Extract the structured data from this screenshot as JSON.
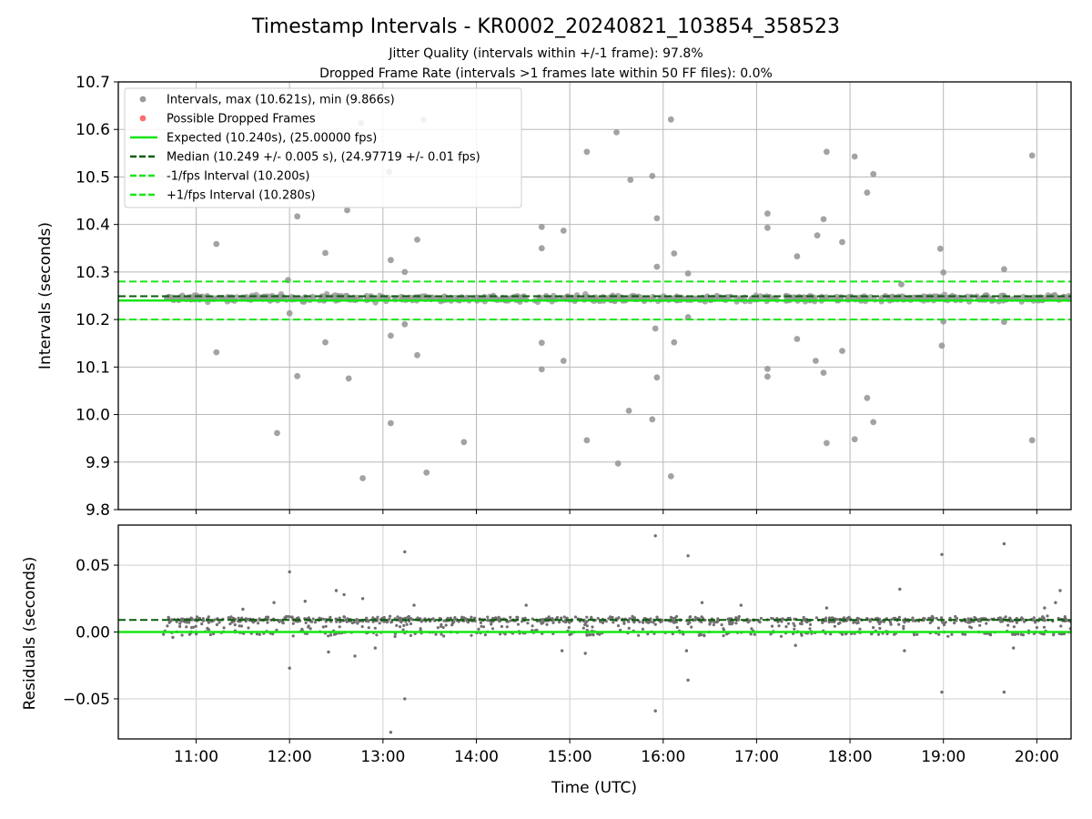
{
  "chart_data": [
    {
      "type": "scatter",
      "title": "Timestamp Intervals - KR0002_20240821_103854_358523",
      "subtitle_1": "Jitter Quality (intervals within +/-1 frame): 97.8%",
      "subtitle_2": "Dropped Frame Rate (intervals >1 frames late within 50 FF files): 0.0%",
      "xlabel": "",
      "ylabel": "Intervals (seconds)",
      "xlim": [
        "10:10",
        "20:22"
      ],
      "ylim": [
        9.8,
        10.7
      ],
      "y_ticks": [
        9.8,
        9.9,
        10.0,
        10.1,
        10.2,
        10.3,
        10.4,
        10.5,
        10.6,
        10.7
      ],
      "y_tick_labels": [
        "9.8",
        "9.9",
        "10.0",
        "10.1",
        "10.2",
        "10.3",
        "10.4",
        "10.5",
        "10.6",
        "10.7"
      ],
      "x_ticks": [
        "11:00",
        "12:00",
        "13:00",
        "14:00",
        "15:00",
        "16:00",
        "17:00",
        "18:00",
        "19:00",
        "20:00"
      ],
      "grid": true,
      "legend_position": "top-left",
      "legend": [
        "Intervals, max (10.621s), min (9.866s)",
        "Possible Dropped Frames",
        "Expected (10.240s), (25.00000 fps)",
        "Median (10.249 +/- 0.005 s), (24.97719 +/- 0.01 fps)",
        "-1/fps Interval (10.200s)",
        "+1/fps Interval (10.280s)"
      ],
      "reference_lines": [
        {
          "name": "Expected",
          "y": 10.24,
          "style": "solid",
          "color": "#17e617"
        },
        {
          "name": "Median",
          "y": 10.249,
          "style": "dashed",
          "color": "#0a5c0a"
        },
        {
          "name": "-1/fps Interval",
          "y": 10.2,
          "style": "dashed",
          "color": "#17e617"
        },
        {
          "name": "+1/fps Interval",
          "y": 10.28,
          "style": "dashed",
          "color": "#17e617"
        }
      ],
      "data_range_x": [
        "10:39",
        "20:22"
      ],
      "series": [
        {
          "name": "Intervals",
          "color": "#999999",
          "points": [
            [
              "11:13",
              10.359
            ],
            [
              "11:13",
              10.131
            ],
            [
              "11:59",
              10.283
            ],
            [
              "12:00",
              10.213
            ],
            [
              "12:05",
              10.417
            ],
            [
              "12:05",
              10.081
            ],
            [
              "11:52",
              9.961
            ],
            [
              "12:23",
              10.34
            ],
            [
              "12:23",
              10.152
            ],
            [
              "12:37",
              10.43
            ],
            [
              "12:38",
              10.076
            ],
            [
              "12:46",
              10.613
            ],
            [
              "12:47",
              9.866
            ],
            [
              "13:04",
              10.511
            ],
            [
              "13:05",
              10.325
            ],
            [
              "13:05",
              10.166
            ],
            [
              "13:05",
              9.982
            ],
            [
              "13:14",
              10.3
            ],
            [
              "13:14",
              10.19
            ],
            [
              "13:22",
              10.368
            ],
            [
              "13:22",
              10.125
            ],
            [
              "13:26",
              10.621
            ],
            [
              "13:28",
              9.878
            ],
            [
              "13:52",
              9.942
            ],
            [
              "14:42",
              10.395
            ],
            [
              "14:42",
              10.35
            ],
            [
              "14:42",
              10.151
            ],
            [
              "14:42",
              10.095
            ],
            [
              "14:56",
              10.387
            ],
            [
              "14:56",
              10.113
            ],
            [
              "15:11",
              10.553
            ],
            [
              "15:11",
              9.946
            ],
            [
              "15:30",
              10.594
            ],
            [
              "15:31",
              9.897
            ],
            [
              "15:39",
              10.494
            ],
            [
              "15:38",
              10.008
            ],
            [
              "15:53",
              10.502
            ],
            [
              "15:53",
              9.99
            ],
            [
              "15:56",
              10.413
            ],
            [
              "15:56",
              10.311
            ],
            [
              "15:55",
              10.181
            ],
            [
              "15:56",
              10.078
            ],
            [
              "16:05",
              10.621
            ],
            [
              "16:05",
              9.87
            ],
            [
              "16:07",
              10.339
            ],
            [
              "16:07",
              10.152
            ],
            [
              "16:16",
              10.297
            ],
            [
              "16:16",
              10.205
            ],
            [
              "17:07",
              10.423
            ],
            [
              "17:07",
              10.393
            ],
            [
              "17:07",
              10.096
            ],
            [
              "17:07",
              10.08
            ],
            [
              "17:26",
              10.333
            ],
            [
              "17:26",
              10.159
            ],
            [
              "17:39",
              10.377
            ],
            [
              "17:38",
              10.113
            ],
            [
              "17:43",
              10.411
            ],
            [
              "17:43",
              10.088
            ],
            [
              "17:45",
              10.553
            ],
            [
              "17:45",
              9.94
            ],
            [
              "17:55",
              10.363
            ],
            [
              "17:55",
              10.134
            ],
            [
              "18:03",
              10.543
            ],
            [
              "18:03",
              9.948
            ],
            [
              "18:11",
              10.467
            ],
            [
              "18:11",
              10.035
            ],
            [
              "18:15",
              10.506
            ],
            [
              "18:15",
              9.984
            ],
            [
              "18:33",
              10.274
            ],
            [
              "18:58",
              10.349
            ],
            [
              "19:00",
              10.299
            ],
            [
              "19:00",
              10.196
            ],
            [
              "18:59",
              10.145
            ],
            [
              "19:39",
              10.306
            ],
            [
              "19:39",
              10.195
            ],
            [
              "19:57",
              10.545
            ],
            [
              "19:57",
              9.946
            ]
          ]
        }
      ]
    },
    {
      "type": "scatter",
      "title": "",
      "xlabel": "Time (UTC)",
      "ylabel": "Residuals (seconds)",
      "xlim": [
        "10:10",
        "20:22"
      ],
      "ylim": [
        -0.08,
        0.08
      ],
      "y_ticks": [
        -0.05,
        0.0,
        0.05
      ],
      "y_tick_labels": [
        "−0.05",
        "0.00",
        "0.05"
      ],
      "x_ticks": [
        "11:00",
        "12:00",
        "13:00",
        "14:00",
        "15:00",
        "16:00",
        "17:00",
        "18:00",
        "19:00",
        "20:00"
      ],
      "grid": true,
      "reference_lines": [
        {
          "name": "Expected",
          "y": 0.0,
          "style": "solid",
          "color": "#17e617"
        },
        {
          "name": "Median",
          "y": 0.009,
          "style": "dashed",
          "color": "#0a5c0a"
        }
      ],
      "series": [
        {
          "name": "Residuals",
          "color": "#707070",
          "points": [
            [
              "12:00",
              0.045
            ],
            [
              "12:00",
              -0.027
            ],
            [
              "13:05",
              -0.075
            ],
            [
              "13:14",
              0.06
            ],
            [
              "13:14",
              -0.05
            ],
            [
              "15:55",
              0.072
            ],
            [
              "15:55",
              -0.059
            ],
            [
              "16:16",
              0.057
            ],
            [
              "16:16",
              -0.036
            ],
            [
              "18:59",
              0.058
            ],
            [
              "18:59",
              -0.045
            ],
            [
              "19:39",
              0.066
            ],
            [
              "19:39",
              -0.045
            ],
            [
              "12:30",
              0.031
            ],
            [
              "12:35",
              0.028
            ],
            [
              "12:25",
              -0.015
            ],
            [
              "12:42",
              -0.018
            ],
            [
              "12:47",
              0.025
            ],
            [
              "16:25",
              0.022
            ],
            [
              "16:15",
              -0.014
            ],
            [
              "18:32",
              0.032
            ],
            [
              "18:35",
              -0.014
            ],
            [
              "20:15",
              0.031
            ],
            [
              "20:12",
              0.022
            ],
            [
              "11:50",
              0.022
            ],
            [
              "17:45",
              0.018
            ],
            [
              "15:10",
              -0.016
            ],
            [
              "14:32",
              0.02
            ],
            [
              "16:50",
              0.02
            ],
            [
              "12:10",
              0.023
            ],
            [
              "12:55",
              -0.012
            ],
            [
              "13:20",
              0.02
            ],
            [
              "14:55",
              -0.014
            ],
            [
              "17:25",
              -0.01
            ],
            [
              "19:45",
              -0.012
            ],
            [
              "11:30",
              0.017
            ],
            [
              "10:45",
              -0.004
            ],
            [
              "20:05",
              0.018
            ]
          ]
        }
      ]
    }
  ]
}
